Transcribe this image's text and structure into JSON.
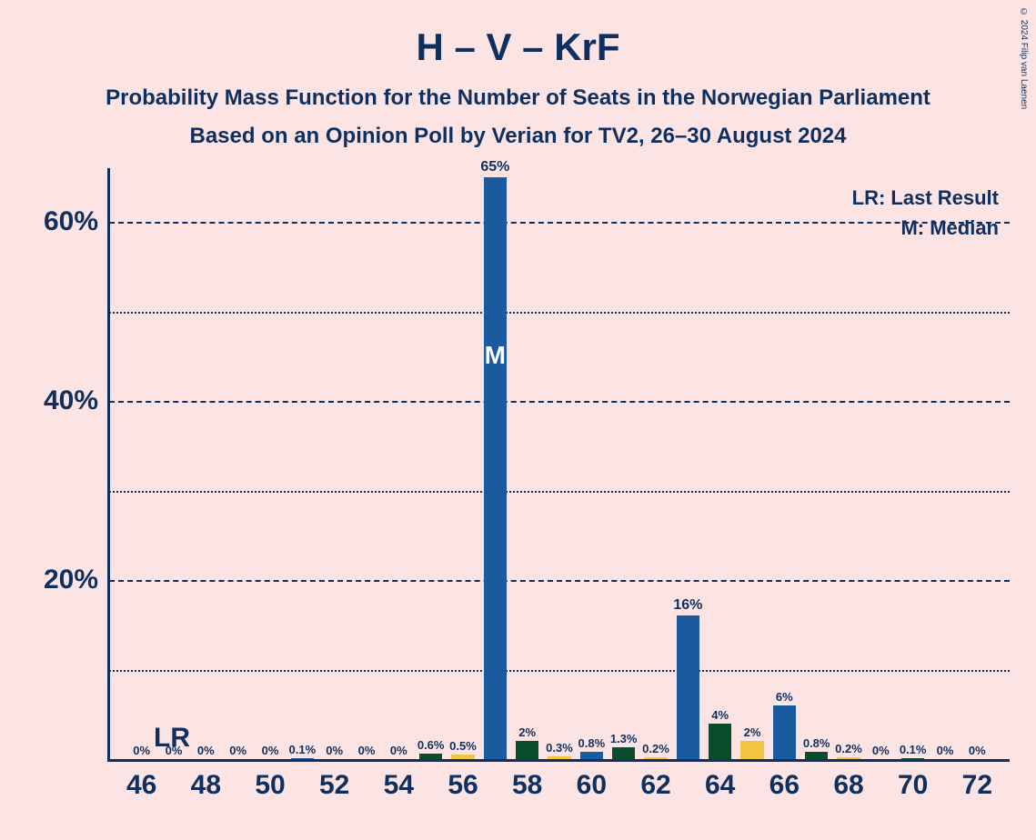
{
  "title": "H – V – KrF",
  "subtitle1": "Probability Mass Function for the Number of Seats in the Norwegian Parliament",
  "subtitle2": "Based on an Opinion Poll by Verian for TV2, 26–30 August 2024",
  "copyright": "© 2024 Filip van Laenen",
  "legend": {
    "lr": "LR: Last Result",
    "m": "M: Median"
  },
  "lr_marker": "LR",
  "median_marker": "M",
  "chart": {
    "type": "bar",
    "background_color": "#fce4e4",
    "text_color": "#0f2f5f",
    "title_fontsize": 42,
    "subtitle_fontsize": 24,
    "axis_label_fontsize": 30,
    "bar_label_fontsize": 13,
    "ylim": [
      0,
      65
    ],
    "y_major_ticks": [
      20,
      40,
      60
    ],
    "y_minor_ticks": [
      10,
      30,
      50
    ],
    "x_range": [
      46,
      72
    ],
    "x_tick_step": 2,
    "bar_width_ratio": 0.72,
    "lr_position": 47,
    "median_position": 57,
    "colors": {
      "blue": "#1a5a9e",
      "green": "#0a4d2e",
      "yellow": "#f4c542"
    },
    "bars": [
      {
        "x": 46,
        "value": 0,
        "label": "0%",
        "color": "blue"
      },
      {
        "x": 47,
        "value": 0,
        "label": "0%",
        "color": "blue"
      },
      {
        "x": 48,
        "value": 0,
        "label": "0%",
        "color": "blue"
      },
      {
        "x": 49,
        "value": 0,
        "label": "0%",
        "color": "blue"
      },
      {
        "x": 50,
        "value": 0,
        "label": "0%",
        "color": "blue"
      },
      {
        "x": 51,
        "value": 0.1,
        "label": "0.1%",
        "color": "blue"
      },
      {
        "x": 52,
        "value": 0,
        "label": "0%",
        "color": "blue"
      },
      {
        "x": 53,
        "value": 0,
        "label": "0%",
        "color": "blue"
      },
      {
        "x": 54,
        "value": 0,
        "label": "0%",
        "color": "blue"
      },
      {
        "x": 55,
        "value": 0.6,
        "label": "0.6%",
        "color": "green"
      },
      {
        "x": 56,
        "value": 0.5,
        "label": "0.5%",
        "color": "yellow"
      },
      {
        "x": 57,
        "value": 65,
        "label": "65%",
        "color": "blue",
        "is_median": true
      },
      {
        "x": 58,
        "value": 2,
        "label": "2%",
        "color": "green"
      },
      {
        "x": 59,
        "value": 0.3,
        "label": "0.3%",
        "color": "yellow"
      },
      {
        "x": 60,
        "value": 0.8,
        "label": "0.8%",
        "color": "blue"
      },
      {
        "x": 61,
        "value": 1.3,
        "label": "1.3%",
        "color": "green"
      },
      {
        "x": 62,
        "value": 0.2,
        "label": "0.2%",
        "color": "yellow"
      },
      {
        "x": 63,
        "value": 16,
        "label": "16%",
        "color": "blue"
      },
      {
        "x": 64,
        "value": 4,
        "label": "4%",
        "color": "green"
      },
      {
        "x": 65,
        "value": 2,
        "label": "2%",
        "color": "yellow"
      },
      {
        "x": 66,
        "value": 6,
        "label": "6%",
        "color": "blue"
      },
      {
        "x": 67,
        "value": 0.8,
        "label": "0.8%",
        "color": "green"
      },
      {
        "x": 68,
        "value": 0.2,
        "label": "0.2%",
        "color": "yellow"
      },
      {
        "x": 69,
        "value": 0,
        "label": "0%",
        "color": "blue"
      },
      {
        "x": 70,
        "value": 0.1,
        "label": "0.1%",
        "color": "green"
      },
      {
        "x": 71,
        "value": 0,
        "label": "0%",
        "color": "yellow"
      },
      {
        "x": 72,
        "value": 0,
        "label": "0%",
        "color": "blue"
      }
    ]
  }
}
